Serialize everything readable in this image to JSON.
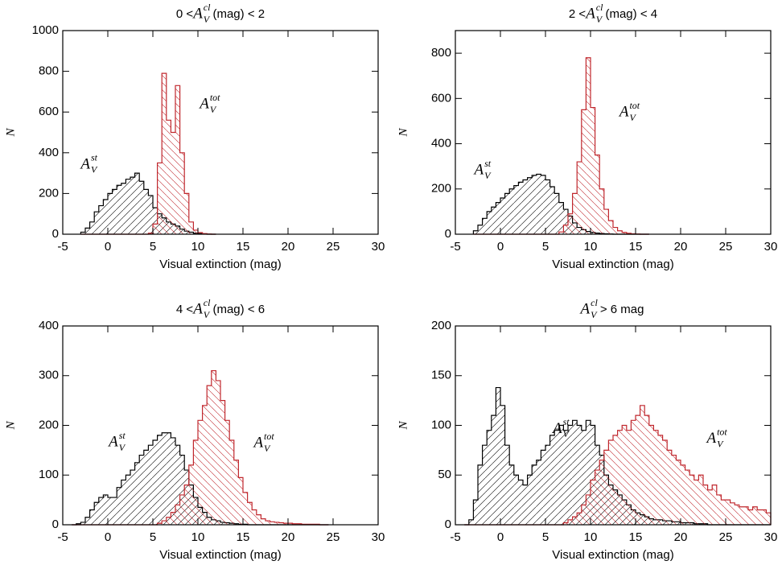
{
  "chart_data": [
    {
      "type": "histogram",
      "title": {
        "prefix": "0 < ",
        "symbol": "A",
        "sub": "V",
        "sup": "cl",
        "suffix": " (mag) < 2"
      },
      "x_label": "Visual extinction (mag)",
      "y_label": "N",
      "xlim": [
        -5,
        30
      ],
      "xticks": [
        -5,
        0,
        5,
        10,
        15,
        20,
        25,
        30
      ],
      "ylim": [
        0,
        1000
      ],
      "yticks": [
        0,
        200,
        400,
        600,
        800,
        1000
      ],
      "bins": [
        -3,
        -2.5,
        -2,
        -1.5,
        -1,
        -0.5,
        0,
        0.5,
        1,
        1.5,
        2,
        2.5,
        3,
        3.5,
        4,
        4.5,
        5,
        5.5,
        6,
        6.5,
        7,
        7.5,
        8,
        8.5,
        9,
        9.5,
        10,
        10.5,
        11,
        11.5,
        12
      ],
      "series": [
        {
          "name": {
            "symbol": "A",
            "sub": "V",
            "sup": "st"
          },
          "color": "#000000",
          "values": [
            10,
            30,
            60,
            110,
            140,
            170,
            200,
            220,
            240,
            250,
            270,
            280,
            300,
            260,
            220,
            190,
            130,
            100,
            80,
            60,
            50,
            40,
            25,
            15,
            10,
            5,
            3,
            1,
            0,
            0
          ]
        },
        {
          "name": {
            "symbol": "A",
            "sub": "V",
            "sup": "tot"
          },
          "color": "#c0272d",
          "values": [
            0,
            0,
            0,
            0,
            0,
            0,
            0,
            0,
            0,
            0,
            0,
            0,
            0,
            0,
            0,
            5,
            50,
            350,
            790,
            560,
            500,
            730,
            400,
            200,
            60,
            20,
            8,
            3,
            1,
            0
          ]
        }
      ]
    },
    {
      "type": "histogram",
      "title": {
        "prefix": "2 < ",
        "symbol": "A",
        "sub": "V",
        "sup": "cl",
        "suffix": " (mag) < 4"
      },
      "x_label": "Visual extinction (mag)",
      "y_label": "N",
      "xlim": [
        -5,
        30
      ],
      "xticks": [
        -5,
        0,
        5,
        10,
        15,
        20,
        25,
        30
      ],
      "ylim": [
        0,
        900
      ],
      "yticks": [
        0,
        200,
        400,
        600,
        800
      ],
      "bins": [
        -3,
        -2.5,
        -2,
        -1.5,
        -1,
        -0.5,
        0,
        0.5,
        1,
        1.5,
        2,
        2.5,
        3,
        3.5,
        4,
        4.5,
        5,
        5.5,
        6,
        6.5,
        7,
        7.5,
        8,
        8.5,
        9,
        9.5,
        10,
        10.5,
        11,
        11.5,
        12,
        12.5,
        13,
        13.5,
        14,
        14.5,
        15,
        15.5,
        16,
        16.5
      ],
      "series": [
        {
          "name": {
            "symbol": "A",
            "sub": "V",
            "sup": "st"
          },
          "color": "#000000",
          "values": [
            15,
            40,
            70,
            100,
            120,
            140,
            160,
            180,
            200,
            215,
            230,
            240,
            250,
            260,
            265,
            260,
            240,
            210,
            180,
            140,
            110,
            80,
            50,
            30,
            20,
            12,
            8,
            5,
            3,
            2,
            1,
            0,
            0,
            0,
            0,
            0,
            0,
            0,
            0
          ]
        },
        {
          "name": {
            "symbol": "A",
            "sub": "V",
            "sup": "tot"
          },
          "color": "#c0272d",
          "values": [
            0,
            0,
            0,
            0,
            0,
            0,
            0,
            0,
            0,
            0,
            0,
            0,
            0,
            0,
            0,
            0,
            0,
            0,
            0,
            10,
            40,
            90,
            180,
            320,
            550,
            780,
            560,
            350,
            200,
            110,
            60,
            30,
            15,
            8,
            4,
            2,
            1,
            0,
            0
          ]
        }
      ]
    },
    {
      "type": "histogram",
      "title": {
        "prefix": "4 < ",
        "symbol": "A",
        "sub": "V",
        "sup": "cl",
        "suffix": " (mag) < 6"
      },
      "x_label": "Visual extinction (mag)",
      "y_label": "N",
      "xlim": [
        -5,
        30
      ],
      "xticks": [
        -5,
        0,
        5,
        10,
        15,
        20,
        25,
        30
      ],
      "ylim": [
        0,
        400
      ],
      "yticks": [
        0,
        100,
        200,
        300,
        400
      ],
      "bins": [
        -4,
        -3.5,
        -3,
        -2.5,
        -2,
        -1.5,
        -1,
        -0.5,
        0,
        0.5,
        1,
        1.5,
        2,
        2.5,
        3,
        3.5,
        4,
        4.5,
        5,
        5.5,
        6,
        6.5,
        7,
        7.5,
        8,
        8.5,
        9,
        9.5,
        10,
        10.5,
        11,
        11.5,
        12,
        12.5,
        13,
        13.5,
        14,
        14.5,
        15,
        15.5,
        16,
        16.5,
        17,
        17.5,
        18,
        18.5,
        19,
        19.5,
        20,
        20.5,
        21,
        21.5,
        22,
        22.5,
        23,
        23.5,
        24,
        24.5
      ],
      "series": [
        {
          "name": {
            "symbol": "A",
            "sub": "V",
            "sup": "st"
          },
          "color": "#000000",
          "values": [
            0,
            2,
            5,
            15,
            30,
            45,
            55,
            60,
            55,
            55,
            75,
            90,
            100,
            110,
            125,
            140,
            150,
            160,
            170,
            180,
            185,
            185,
            175,
            160,
            140,
            110,
            80,
            55,
            35,
            25,
            15,
            10,
            8,
            5,
            4,
            3,
            2,
            1,
            1,
            0,
            0,
            0,
            0,
            0,
            0,
            0,
            0,
            0,
            0,
            0,
            0,
            0,
            0,
            0,
            0,
            0,
            0
          ]
        },
        {
          "name": {
            "symbol": "A",
            "sub": "V",
            "sup": "tot"
          },
          "color": "#c0272d",
          "values": [
            0,
            0,
            0,
            0,
            0,
            0,
            0,
            0,
            0,
            0,
            0,
            0,
            0,
            0,
            0,
            0,
            0,
            0,
            0,
            3,
            8,
            15,
            25,
            40,
            60,
            80,
            120,
            170,
            210,
            240,
            280,
            310,
            290,
            250,
            210,
            170,
            130,
            95,
            65,
            45,
            30,
            20,
            12,
            8,
            6,
            5,
            4,
            3,
            3,
            2,
            2,
            1,
            1,
            1,
            1,
            0,
            0
          ]
        }
      ]
    },
    {
      "type": "histogram",
      "title": {
        "symbol": "A",
        "sub": "V",
        "sup": "cl",
        "suffix": " > 6 mag"
      },
      "x_label": "Visual extinction (mag)",
      "y_label": "N",
      "xlim": [
        -5,
        30
      ],
      "xticks": [
        -5,
        0,
        5,
        10,
        15,
        20,
        25,
        30
      ],
      "ylim": [
        0,
        200
      ],
      "yticks": [
        0,
        50,
        100,
        150,
        200
      ],
      "bins": [
        -4,
        -3.5,
        -3,
        -2.5,
        -2,
        -1.5,
        -1,
        -0.5,
        0,
        0.5,
        1,
        1.5,
        2,
        2.5,
        3,
        3.5,
        4,
        4.5,
        5,
        5.5,
        6,
        6.5,
        7,
        7.5,
        8,
        8.5,
        9,
        9.5,
        10,
        10.5,
        11,
        11.5,
        12,
        12.5,
        13,
        13.5,
        14,
        14.5,
        15,
        15.5,
        16,
        16.5,
        17,
        17.5,
        18,
        18.5,
        19,
        19.5,
        20,
        20.5,
        21,
        21.5,
        22,
        22.5,
        23,
        23.5,
        24,
        24.5,
        25,
        25.5,
        26,
        26.5,
        27,
        27.5,
        28,
        28.5,
        29,
        29.5,
        30
      ],
      "series": [
        {
          "name": {
            "symbol": "A",
            "sub": "V",
            "sup": "st"
          },
          "color": "#000000",
          "values": [
            0,
            5,
            25,
            60,
            80,
            95,
            110,
            138,
            120,
            80,
            60,
            50,
            45,
            40,
            50,
            60,
            65,
            75,
            80,
            90,
            95,
            100,
            95,
            100,
            105,
            100,
            95,
            105,
            100,
            80,
            70,
            50,
            40,
            35,
            30,
            25,
            20,
            15,
            12,
            10,
            8,
            6,
            5,
            5,
            4,
            4,
            3,
            3,
            2,
            2,
            2,
            1,
            1,
            1,
            0,
            0,
            0,
            0,
            0,
            0,
            0,
            0,
            0,
            0,
            0,
            0,
            0,
            0
          ]
        },
        {
          "name": {
            "symbol": "A",
            "sub": "V",
            "sup": "tot"
          },
          "color": "#c0272d",
          "values": [
            0,
            0,
            0,
            0,
            0,
            0,
            0,
            0,
            0,
            0,
            0,
            0,
            0,
            0,
            0,
            0,
            0,
            0,
            0,
            0,
            0,
            0,
            2,
            5,
            8,
            12,
            20,
            30,
            45,
            55,
            65,
            75,
            85,
            90,
            95,
            100,
            95,
            105,
            110,
            120,
            110,
            100,
            95,
            90,
            85,
            75,
            70,
            65,
            60,
            55,
            50,
            45,
            50,
            40,
            35,
            40,
            30,
            25,
            25,
            22,
            20,
            18,
            18,
            15,
            18,
            15,
            15,
            12
          ]
        }
      ]
    }
  ]
}
